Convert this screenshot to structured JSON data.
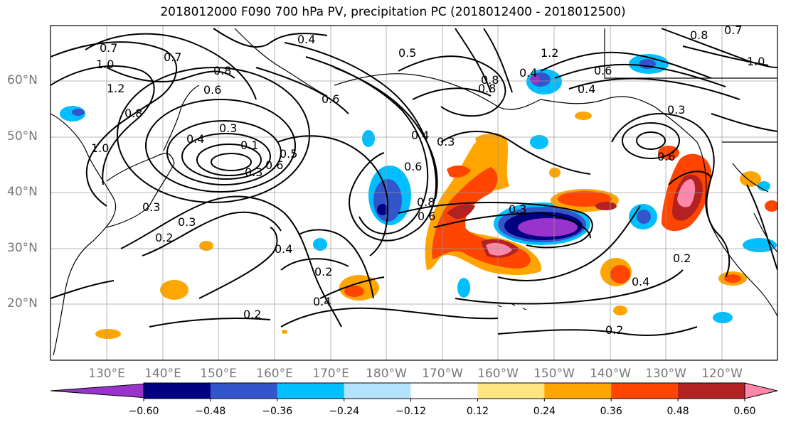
{
  "title": "2018012000 F090 700 hPa PV, precipitation PC (2018012400 - 2018012500)",
  "latitude_labels": [
    "60°N",
    "50°N",
    "40°N",
    "30°N",
    "20°N"
  ],
  "longitude_labels": [
    "130°E",
    "140°E",
    "150°E",
    "160°E",
    "170°E",
    "180°W",
    "170°W",
    "160°W",
    "150°W",
    "140°W",
    "130°W",
    "120°W"
  ],
  "colorbar": {
    "colors": [
      "#9933cc",
      "#000080",
      "#3355cc",
      "#00bfff",
      "#b3e3ff",
      "#ffffff",
      "#ffe680",
      "#ffa500",
      "#ff4500",
      "#b22222",
      "#ff88aa"
    ],
    "tick_labels": [
      "−0.60",
      "−0.48",
      "−0.36",
      "−0.24",
      "−0.12",
      "0.12",
      "0.24",
      "0.36",
      "0.48",
      "0.60"
    ]
  },
  "contour_labels": [
    "0.4",
    "0.5",
    "0.7",
    "1.0",
    "1.2",
    "0.7",
    "0.8",
    "0.6",
    "0.8",
    "1.0",
    "1.2",
    "0.4",
    "0.6",
    "0.8",
    "0.7",
    "1.0",
    "0.4",
    "0.6",
    "0.8",
    "0.3",
    "0.4",
    "0.1",
    "0.5",
    "0.6",
    "0.3",
    "0.6",
    "0.6",
    "0.3",
    "0.4",
    "0.8",
    "0.3",
    "0.6",
    "0.3",
    "0.2",
    "0.3",
    "0.4",
    "0.2",
    "0.4",
    "0.2",
    "0.2",
    "0.4",
    "0.2",
    "0.3",
    "0.8"
  ]
}
